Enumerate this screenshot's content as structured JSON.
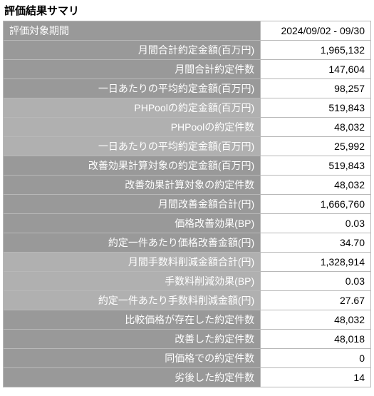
{
  "title": "評価結果サマリ",
  "groups": [
    {
      "shade": "dark",
      "rows": [
        {
          "label": "評価対象期間",
          "value": "2024/09/02 - 09/30",
          "align": "left"
        },
        {
          "label": "月間合計約定金額(百万円)",
          "value": "1,965,132"
        },
        {
          "label": "月間合計約定件数",
          "value": "147,604"
        },
        {
          "label": "一日あたりの平均約定金額(百万円)",
          "value": "98,257"
        }
      ]
    },
    {
      "shade": "light",
      "rows": [
        {
          "label": "PHPoolの約定金額(百万円)",
          "value": "519,843"
        },
        {
          "label": "PHPoolの約定件数",
          "value": "48,032"
        },
        {
          "label": "一日あたりの平均約定金額(百万円)",
          "value": "25,992"
        }
      ]
    },
    {
      "shade": "dark",
      "rows": [
        {
          "label": "改善効果計算対象の約定金額(百万円)",
          "value": "519,843"
        },
        {
          "label": "改善効果計算対象の約定件数",
          "value": "48,032"
        },
        {
          "label": "月間改善金額合計(円)",
          "value": "1,666,760"
        },
        {
          "label": "価格改善効果(BP)",
          "value": "0.03"
        },
        {
          "label": "約定一件あたり価格改善金額(円)",
          "value": "34.70"
        }
      ]
    },
    {
      "shade": "light",
      "rows": [
        {
          "label": "月間手数料削減金額合計(円)",
          "value": "1,328,914"
        },
        {
          "label": "手数料削減効果(BP)",
          "value": "0.03"
        },
        {
          "label": "約定一件あたり手数料削減金額(円)",
          "value": "27.67"
        }
      ]
    },
    {
      "shade": "dark",
      "rows": [
        {
          "label": "比較価格が存在した約定件数",
          "value": "48,032"
        },
        {
          "label": "改善した約定件数",
          "value": "48,018"
        },
        {
          "label": "同価格での約定件数",
          "value": "0"
        },
        {
          "label": "劣後した約定件数",
          "value": "14"
        }
      ]
    }
  ],
  "style": {
    "label_dark_bg": "#999999",
    "label_light_bg": "#b0b0b0",
    "label_color": "#ffffff",
    "value_bg": "#ffffff",
    "value_color": "#000000",
    "border_color": "#b8b8b8"
  }
}
